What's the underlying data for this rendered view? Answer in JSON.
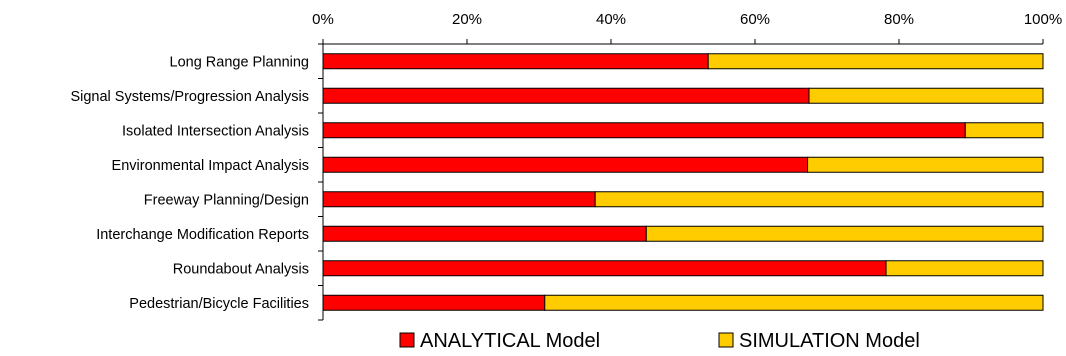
{
  "chart_data": {
    "type": "bar",
    "orientation": "horizontal",
    "stacked": "percent",
    "categories": [
      "Long Range Planning",
      "Signal Systems/Progression Analysis",
      "Isolated Intersection Analysis",
      "Environmental Impact Analysis",
      "Freeway Planning/Design",
      "Interchange Modification Reports",
      "Roundabout Analysis",
      "Pedestrian/Bicycle Facilities"
    ],
    "series": [
      {
        "name": "ANALYTICAL Model",
        "color": "#ff0000",
        "values": [
          53.5,
          67.5,
          89.2,
          67.3,
          37.8,
          44.9,
          78.2,
          30.8
        ]
      },
      {
        "name": "SIMULATION Model",
        "color": "#ffcc00",
        "values": [
          46.5,
          32.5,
          10.8,
          32.7,
          62.2,
          55.1,
          21.8,
          69.2
        ]
      }
    ],
    "xlim": [
      0,
      100
    ],
    "x_ticks": [
      "0%",
      "20%",
      "40%",
      "60%",
      "80%",
      "100%"
    ],
    "x_axis_position": "top",
    "legend_position": "bottom",
    "grid": false
  }
}
